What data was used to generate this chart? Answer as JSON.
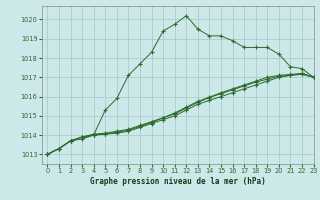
{
  "title": "Graphe pression niveau de la mer (hPa)",
  "background_color": "#cce8e8",
  "grid_color": "#aacccc",
  "line_color": "#2d6a2d",
  "marker_color": "#2d6a2d",
  "xlim": [
    -0.5,
    23
  ],
  "ylim": [
    1012.5,
    1020.7
  ],
  "yticks": [
    1013,
    1014,
    1015,
    1016,
    1017,
    1018,
    1019,
    1020
  ],
  "xticks": [
    0,
    1,
    2,
    3,
    4,
    5,
    6,
    7,
    8,
    9,
    10,
    11,
    12,
    13,
    14,
    15,
    16,
    17,
    18,
    19,
    20,
    21,
    22,
    23
  ],
  "series": [
    [
      1013.0,
      1013.3,
      1013.7,
      1013.8,
      1014.0,
      1015.3,
      1015.9,
      1017.1,
      1017.7,
      1018.3,
      1019.4,
      1019.75,
      1020.2,
      1019.5,
      1019.15,
      1019.15,
      1018.9,
      1018.55,
      1018.55,
      1018.55,
      1018.2,
      1017.55,
      1017.45,
      1017.0
    ],
    [
      1013.0,
      1013.3,
      1013.7,
      1013.9,
      1014.0,
      1014.05,
      1014.1,
      1014.2,
      1014.4,
      1014.6,
      1014.8,
      1015.0,
      1015.3,
      1015.6,
      1015.8,
      1016.0,
      1016.2,
      1016.4,
      1016.6,
      1016.8,
      1017.0,
      1017.1,
      1017.2,
      1017.0
    ],
    [
      1013.0,
      1013.3,
      1013.7,
      1013.9,
      1014.05,
      1014.1,
      1014.2,
      1014.3,
      1014.5,
      1014.7,
      1014.9,
      1015.1,
      1015.4,
      1015.7,
      1015.95,
      1016.15,
      1016.35,
      1016.55,
      1016.75,
      1016.9,
      1017.05,
      1017.1,
      1017.15,
      1017.0
    ],
    [
      1013.0,
      1013.3,
      1013.7,
      1013.9,
      1014.0,
      1014.05,
      1014.15,
      1014.25,
      1014.45,
      1014.65,
      1014.9,
      1015.15,
      1015.45,
      1015.75,
      1015.97,
      1016.2,
      1016.4,
      1016.6,
      1016.8,
      1017.0,
      1017.1,
      1017.15,
      1017.2,
      1017.0
    ]
  ],
  "title_fontsize": 5.5,
  "tick_fontsize": 4.8,
  "tick_color": "#2d6a2d",
  "spine_color": "#888888"
}
